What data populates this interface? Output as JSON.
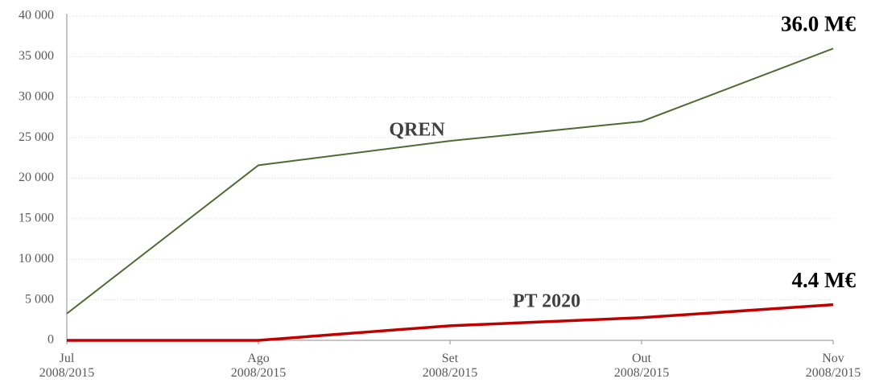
{
  "chart_data": {
    "type": "line",
    "categories": [
      "Jul\n2008/2015",
      "Ago\n2008/2015",
      "Set\n2008/2015",
      "Out\n2008/2015",
      "Nov\n2008/2015"
    ],
    "series": [
      {
        "name": "QREN",
        "color": "#4f6b34",
        "values": [
          3300,
          21600,
          24600,
          27000,
          36000
        ],
        "value_labels": [
          null,
          null,
          null,
          null,
          "36.0 M€"
        ]
      },
      {
        "name": "PT 2020",
        "color": "#c00000",
        "values": [
          0,
          0,
          1800,
          2800,
          4400
        ],
        "value_labels": [
          null,
          null,
          null,
          null,
          "4.4 M€"
        ]
      }
    ],
    "ylim": [
      0,
      40000
    ],
    "yticks": [
      0,
      {
        "value": 5000,
        "label": "5 000"
      },
      {
        "value": 10000,
        "label": "10 000"
      },
      {
        "value": 15000,
        "label": "15 000"
      },
      {
        "value": 20000,
        "label": "20 000"
      },
      {
        "value": 25000,
        "label": "25 000"
      },
      {
        "value": 30000,
        "label": "30 000"
      },
      {
        "value": 35000,
        "label": "35 000"
      },
      {
        "value": 40000,
        "label": "40 000"
      }
    ],
    "grid": true
  }
}
